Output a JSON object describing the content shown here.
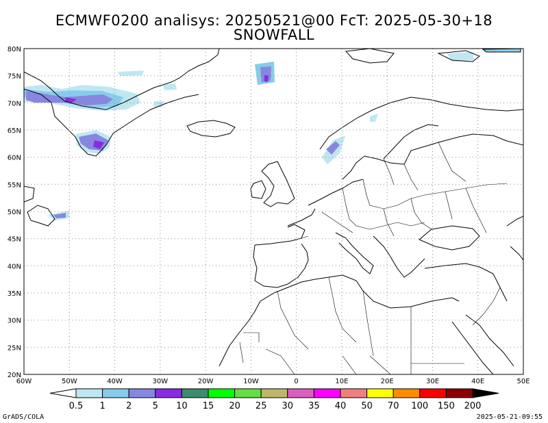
{
  "title": {
    "line1": "ECMWF0200 analisys: 20250521@00 FcT: 2025-05-30+18",
    "line2": "SNOWFALL"
  },
  "map": {
    "lat_labels": [
      "80N",
      "75N",
      "70N",
      "65N",
      "60N",
      "55N",
      "50N",
      "45N",
      "40N",
      "35N",
      "30N",
      "25N",
      "20N"
    ],
    "lon_labels": [
      "60W",
      "50W",
      "40W",
      "30W",
      "20W",
      "10W",
      "0",
      "10E",
      "20E",
      "30E",
      "40E",
      "50E"
    ],
    "extent": {
      "lon": [
        -60,
        50
      ],
      "lat": [
        20,
        80
      ]
    }
  },
  "colorbar": {
    "labels": [
      "0.5",
      "1",
      "2",
      "5",
      "10",
      "15",
      "20",
      "25",
      "30",
      "35",
      "40",
      "50",
      "70",
      "100",
      "150",
      "200"
    ],
    "colors": [
      "#ffffff",
      "#bfe7f2",
      "#87cceb",
      "#8787e0",
      "#8a2be2",
      "#3d8b6f",
      "#00ff00",
      "#66dd44",
      "#bdb76b",
      "#da5fbf",
      "#ff00ff",
      "#f08080",
      "#ffff00",
      "#ff8c00",
      "#ff0000",
      "#8b0000",
      "#000000"
    ]
  },
  "footer": {
    "left": "GrADS/COLA",
    "right": "2025-05-21-09:55"
  }
}
